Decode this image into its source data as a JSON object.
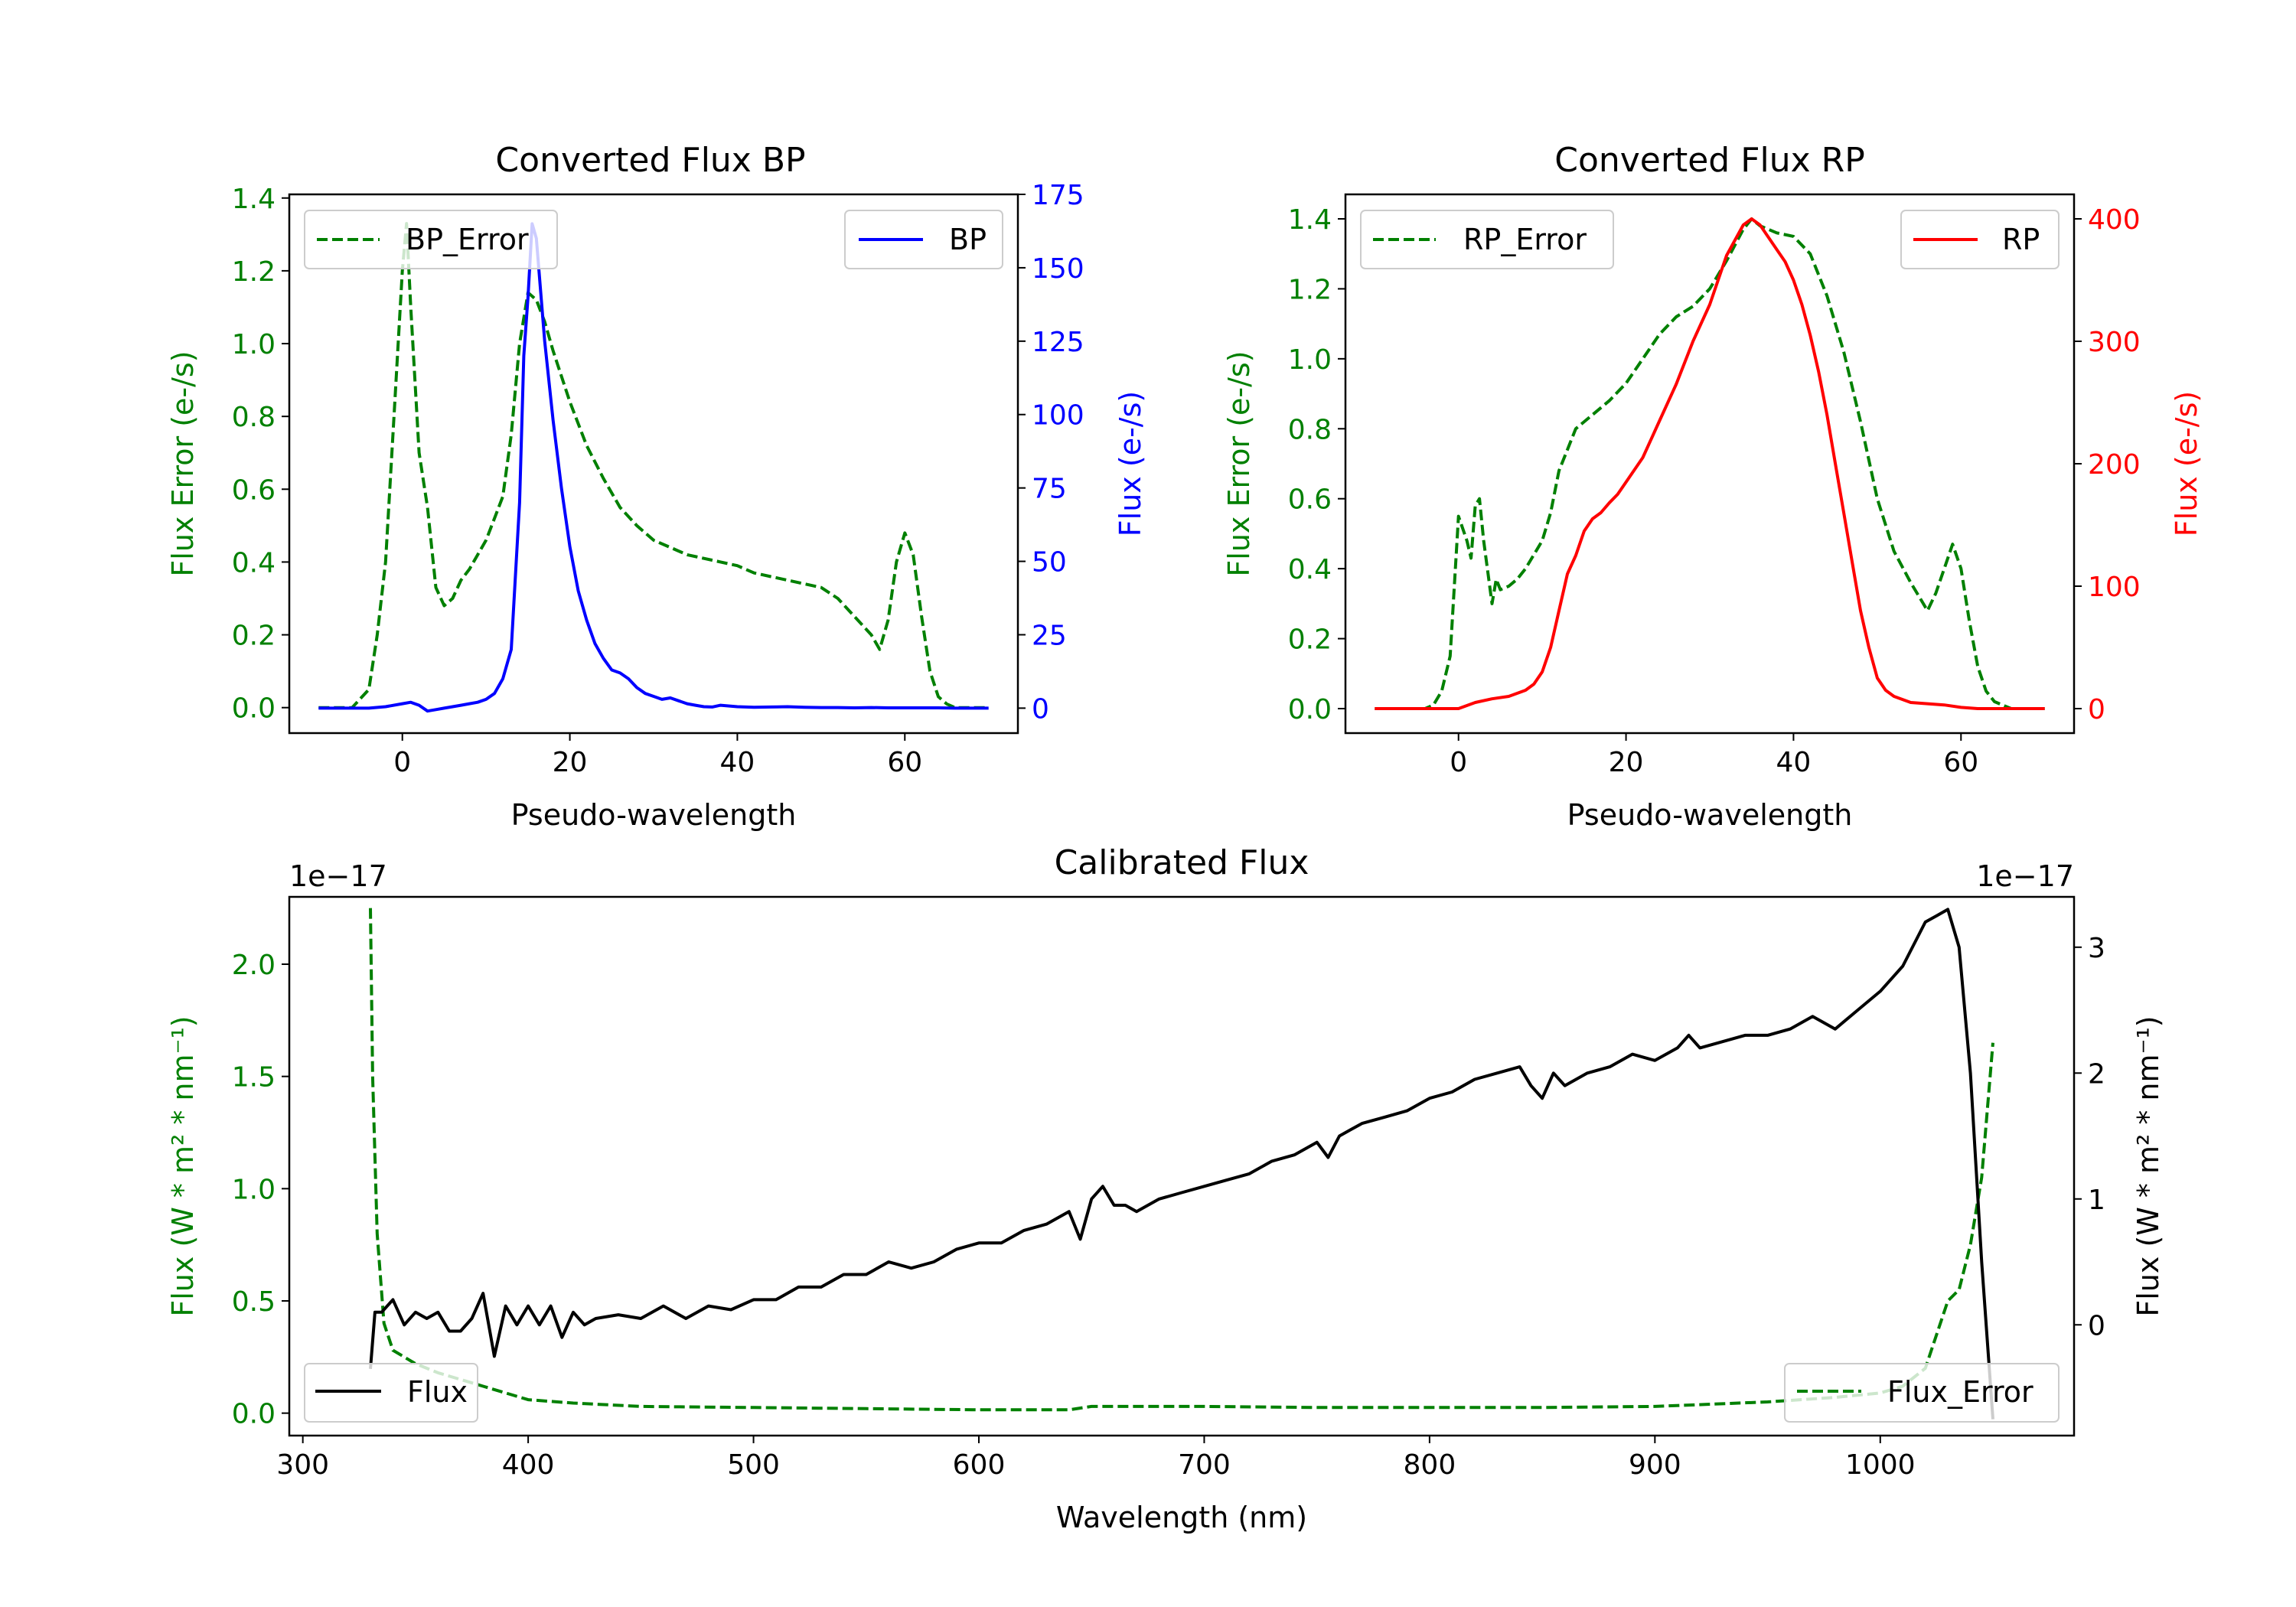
{
  "chart_data": [
    {
      "type": "line",
      "title": "Converted Flux BP",
      "xlabel": "Pseudo-wavelength",
      "xlim": [
        -13.5,
        73.5
      ],
      "xticks": [
        "0",
        "20",
        "40",
        "60"
      ],
      "left_axis": {
        "label": "Flux Error (e-/s)",
        "color": "#008000",
        "ylim": [
          -0.07,
          1.41
        ],
        "ticks": [
          "0.0",
          "0.2",
          "0.4",
          "0.6",
          "0.8",
          "1.0",
          "1.2",
          "1.4"
        ]
      },
      "right_axis": {
        "label": "Flux (e-/s)",
        "color": "#0000ff",
        "ylim": [
          -8.5,
          175
        ],
        "ticks": [
          "0",
          "25",
          "50",
          "75",
          "100",
          "125",
          "150",
          "175"
        ]
      },
      "legend_left": {
        "label": "BP_Error",
        "position": "upper left"
      },
      "legend_right": {
        "label": "BP",
        "position": "upper right"
      },
      "series": [
        {
          "name": "BP_Error",
          "axis": "left",
          "color": "#008000",
          "dash": true,
          "x": [
            -10,
            -6,
            -4,
            -3,
            -2,
            -1,
            0,
            0.5,
            1,
            2,
            3,
            4,
            5,
            6,
            7,
            8,
            9,
            10,
            11,
            12,
            13,
            14,
            15,
            16,
            17,
            18,
            20,
            22,
            24,
            26,
            28,
            30,
            32,
            34,
            36,
            38,
            40,
            42,
            44,
            46,
            48,
            50,
            52,
            54,
            56,
            57,
            58,
            59,
            60,
            61,
            62,
            63,
            64,
            65,
            66,
            70
          ],
          "y": [
            0,
            0,
            0.05,
            0.2,
            0.4,
            0.8,
            1.2,
            1.33,
            1.1,
            0.7,
            0.55,
            0.33,
            0.28,
            0.3,
            0.35,
            0.38,
            0.42,
            0.46,
            0.52,
            0.58,
            0.75,
            1.0,
            1.14,
            1.12,
            1.06,
            0.98,
            0.84,
            0.72,
            0.63,
            0.55,
            0.5,
            0.46,
            0.44,
            0.42,
            0.41,
            0.4,
            0.39,
            0.37,
            0.36,
            0.35,
            0.34,
            0.33,
            0.3,
            0.25,
            0.2,
            0.16,
            0.24,
            0.4,
            0.48,
            0.42,
            0.25,
            0.1,
            0.03,
            0.01,
            0,
            0
          ]
        },
        {
          "name": "BP",
          "axis": "right",
          "color": "#0000ff",
          "dash": false,
          "x": [
            -10,
            -4,
            -2,
            0,
            1,
            2,
            3,
            4,
            5,
            6,
            7,
            8,
            9,
            10,
            11,
            12,
            13,
            14,
            14.5,
            15,
            15.5,
            16,
            17,
            18,
            19,
            20,
            21,
            22,
            23,
            24,
            25,
            26,
            27,
            28,
            29,
            30,
            31,
            32,
            33,
            34,
            35,
            36,
            37,
            38,
            40,
            42,
            44,
            46,
            48,
            50,
            52,
            54,
            56,
            58,
            60,
            62,
            64,
            66,
            68,
            70
          ],
          "y": [
            0,
            0,
            0.5,
            1.5,
            2,
            1,
            -1,
            -0.5,
            0,
            0.5,
            1,
            1.5,
            2,
            3,
            5,
            10,
            20,
            70,
            120,
            140,
            165,
            160,
            125,
            98,
            75,
            55,
            40,
            30,
            22,
            17,
            13,
            12,
            10,
            7,
            5,
            4,
            3,
            3.5,
            2.5,
            1.5,
            1,
            0.5,
            0.4,
            1,
            0.5,
            0.3,
            0.4,
            0.5,
            0.3,
            0.2,
            0.2,
            0.1,
            0.2,
            0.1,
            0.1,
            0.1,
            0.1,
            0,
            0,
            0
          ]
        }
      ]
    },
    {
      "type": "line",
      "title": "Converted Flux RP",
      "xlabel": "Pseudo-wavelength",
      "xlim": [
        -13.5,
        73.5
      ],
      "xticks": [
        "0",
        "20",
        "40",
        "60"
      ],
      "left_axis": {
        "label": "Flux Error (e-/s)",
        "color": "#008000",
        "ylim": [
          -0.07,
          1.47
        ],
        "ticks": [
          "0.0",
          "0.2",
          "0.4",
          "0.6",
          "0.8",
          "1.0",
          "1.2",
          "1.4"
        ]
      },
      "right_axis": {
        "label": "Flux (e-/s)",
        "color": "#ff0000",
        "ylim": [
          -20,
          420
        ],
        "ticks": [
          "0",
          "100",
          "200",
          "300",
          "400"
        ]
      },
      "legend_left": {
        "label": "RP_Error",
        "position": "upper left"
      },
      "legend_right": {
        "label": "RP",
        "position": "upper right"
      },
      "series": [
        {
          "name": "RP_Error",
          "axis": "left",
          "color": "#008000",
          "dash": true,
          "x": [
            -10,
            -4,
            -3,
            -2,
            -1,
            0,
            1,
            1.5,
            2,
            2.5,
            3,
            4,
            4.5,
            5,
            6,
            7,
            8,
            10,
            11,
            12,
            13,
            14,
            16,
            18,
            20,
            22,
            24,
            26,
            28,
            30,
            32,
            34,
            35,
            36,
            38,
            40,
            42,
            44,
            46,
            48,
            50,
            52,
            54,
            55,
            56,
            57,
            58,
            59,
            60,
            61,
            62,
            63,
            64,
            66,
            70
          ],
          "y": [
            0,
            0,
            0.01,
            0.05,
            0.15,
            0.55,
            0.48,
            0.43,
            0.58,
            0.6,
            0.48,
            0.3,
            0.37,
            0.34,
            0.35,
            0.37,
            0.4,
            0.48,
            0.56,
            0.68,
            0.74,
            0.8,
            0.84,
            0.88,
            0.93,
            1.0,
            1.07,
            1.12,
            1.15,
            1.2,
            1.28,
            1.37,
            1.4,
            1.38,
            1.36,
            1.35,
            1.3,
            1.18,
            1.02,
            0.82,
            0.6,
            0.45,
            0.36,
            0.32,
            0.28,
            0.33,
            0.4,
            0.47,
            0.4,
            0.25,
            0.12,
            0.05,
            0.02,
            0,
            0
          ]
        },
        {
          "name": "RP",
          "axis": "right",
          "color": "#ff0000",
          "dash": false,
          "x": [
            -10,
            -2,
            0,
            2,
            4,
            6,
            8,
            9,
            10,
            11,
            12,
            13,
            14,
            15,
            16,
            17,
            18,
            19,
            20,
            22,
            24,
            26,
            28,
            30,
            32,
            34,
            35,
            36,
            37,
            38,
            39,
            40,
            41,
            42,
            43,
            44,
            45,
            46,
            47,
            48,
            49,
            50,
            51,
            52,
            54,
            56,
            58,
            60,
            62,
            64,
            66,
            68,
            70
          ],
          "y": [
            0,
            0,
            0,
            5,
            8,
            10,
            15,
            20,
            30,
            50,
            80,
            110,
            125,
            145,
            155,
            160,
            168,
            175,
            185,
            205,
            235,
            265,
            300,
            330,
            370,
            395,
            400,
            395,
            385,
            375,
            365,
            350,
            330,
            305,
            275,
            240,
            200,
            160,
            120,
            80,
            50,
            25,
            15,
            10,
            5,
            4,
            3,
            1,
            0,
            0,
            0,
            0,
            0
          ]
        }
      ]
    },
    {
      "type": "line",
      "title": "Calibrated Flux",
      "xlabel": "Wavelength (nm)",
      "xlim": [
        294,
        1086
      ],
      "xticks": [
        "300",
        "400",
        "500",
        "600",
        "700",
        "800",
        "900",
        "1000"
      ],
      "left_axis": {
        "label": "Flux (W * m² * nm⁻¹)",
        "color": "#008000",
        "ylim": [
          -0.1,
          2.3
        ],
        "ticks": [
          "0.0",
          "0.5",
          "1.0",
          "1.5",
          "2.0"
        ],
        "offset_text": "1e−17"
      },
      "right_axis": {
        "label": "Flux (W * m² * nm⁻¹)",
        "color": "#000000",
        "ylim": [
          -0.88,
          3.4
        ],
        "ticks": [
          "0",
          "1",
          "2",
          "3"
        ],
        "offset_text": "1e−17"
      },
      "legend_left": {
        "label": "Flux",
        "position": "lower left"
      },
      "legend_right": {
        "label": "Flux_Error",
        "position": "lower right"
      },
      "series": [
        {
          "name": "Flux_Error",
          "axis": "left",
          "color": "#008000",
          "dash": true,
          "x": [
            330,
            331,
            333,
            336,
            340,
            345,
            350,
            360,
            370,
            380,
            390,
            400,
            420,
            450,
            500,
            550,
            600,
            640,
            650,
            700,
            750,
            800,
            850,
            900,
            950,
            980,
            1000,
            1010,
            1020,
            1025,
            1030,
            1035,
            1040,
            1045,
            1050
          ],
          "y": [
            2.25,
            1.5,
            0.8,
            0.4,
            0.28,
            0.25,
            0.22,
            0.18,
            0.15,
            0.12,
            0.09,
            0.06,
            0.045,
            0.03,
            0.025,
            0.02,
            0.015,
            0.015,
            0.03,
            0.03,
            0.025,
            0.025,
            0.025,
            0.03,
            0.05,
            0.07,
            0.09,
            0.12,
            0.2,
            0.35,
            0.5,
            0.55,
            0.75,
            1.05,
            1.65
          ]
        },
        {
          "name": "Flux",
          "axis": "right",
          "color": "#000000",
          "dash": false,
          "x": [
            330,
            332,
            335,
            340,
            345,
            350,
            355,
            360,
            365,
            370,
            375,
            380,
            385,
            390,
            395,
            400,
            405,
            410,
            415,
            420,
            425,
            430,
            440,
            450,
            460,
            470,
            480,
            490,
            500,
            510,
            520,
            530,
            540,
            550,
            560,
            570,
            580,
            590,
            600,
            610,
            620,
            630,
            640,
            645,
            650,
            655,
            660,
            665,
            670,
            680,
            690,
            700,
            710,
            720,
            730,
            740,
            750,
            755,
            760,
            765,
            770,
            780,
            790,
            800,
            810,
            820,
            830,
            840,
            845,
            850,
            855,
            860,
            870,
            880,
            890,
            900,
            910,
            915,
            920,
            930,
            940,
            950,
            960,
            970,
            975,
            980,
            990,
            1000,
            1010,
            1020,
            1025,
            1030,
            1035,
            1040,
            1045,
            1050
          ],
          "y": [
            -0.35,
            0.1,
            0.1,
            0.2,
            0.0,
            0.1,
            0.05,
            0.1,
            -0.05,
            -0.05,
            0.05,
            0.25,
            -0.25,
            0.15,
            0.0,
            0.15,
            0.0,
            0.15,
            -0.1,
            0.1,
            0.0,
            0.05,
            0.08,
            0.05,
            0.15,
            0.05,
            0.15,
            0.12,
            0.2,
            0.2,
            0.3,
            0.3,
            0.4,
            0.4,
            0.5,
            0.45,
            0.5,
            0.6,
            0.65,
            0.65,
            0.75,
            0.8,
            0.9,
            0.68,
            1.0,
            1.1,
            0.95,
            0.95,
            0.9,
            1.0,
            1.05,
            1.1,
            1.15,
            1.2,
            1.3,
            1.35,
            1.45,
            1.33,
            1.5,
            1.55,
            1.6,
            1.65,
            1.7,
            1.8,
            1.85,
            1.95,
            2.0,
            2.05,
            1.9,
            1.8,
            2.0,
            1.9,
            2.0,
            2.05,
            2.15,
            2.1,
            2.2,
            2.3,
            2.2,
            2.25,
            2.3,
            2.3,
            2.35,
            2.45,
            2.4,
            2.35,
            2.5,
            2.65,
            2.85,
            3.2,
            3.25,
            3.3,
            3.0,
            2.0,
            0.5,
            -0.75
          ]
        }
      ]
    }
  ]
}
